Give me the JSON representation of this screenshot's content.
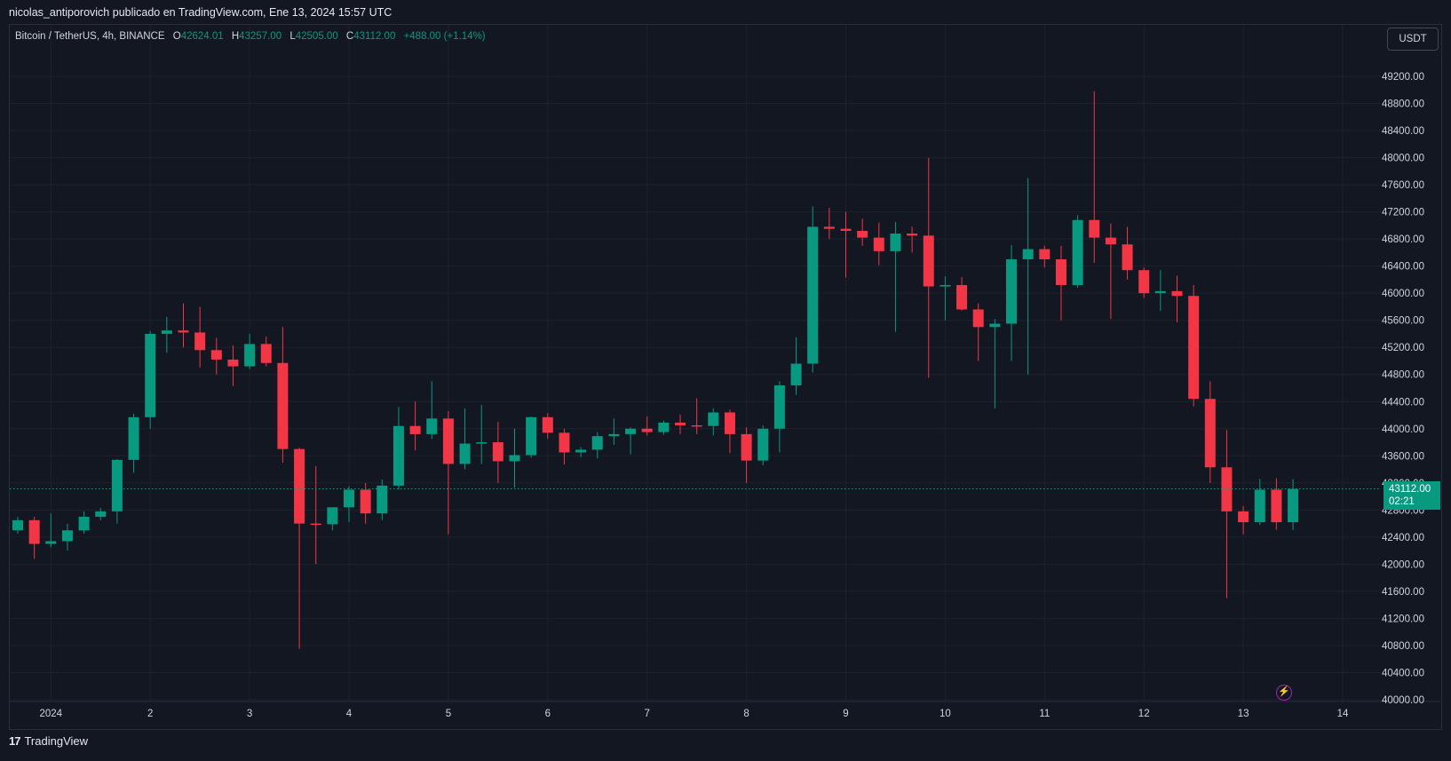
{
  "header": {
    "attribution": "nicolas_antiporovich publicado en TradingView.com, Ene 13, 2024 15:57 UTC"
  },
  "legend": {
    "symbol": "Bitcoin / TetherUS, 4h, BINANCE",
    "open_key": "O",
    "open": "42624.01",
    "high_key": "H",
    "high": "43257.00",
    "low_key": "L",
    "low": "42505.00",
    "close_key": "C",
    "close": "43112.00",
    "change": "+488.00 (+1.14%)"
  },
  "currency": "USDT",
  "last_price": {
    "price": "43112.00",
    "countdown": "02:21"
  },
  "footer": {
    "logo": "17",
    "brand": "TradingView"
  },
  "colors": {
    "up": "#089981",
    "down": "#f23645",
    "background": "#131722",
    "grid": "#1e222d",
    "text": "#d1d4dc"
  },
  "icons": {
    "alert": "lightning-icon",
    "logo": "tradingview-logo-icon"
  },
  "chart_data": {
    "type": "candlestick",
    "interval": "4h",
    "ylim": [
      39850,
      49650
    ],
    "y_ticks": [
      40000,
      40400,
      40800,
      41200,
      41600,
      42000,
      42400,
      42800,
      43200,
      43600,
      44000,
      44400,
      44800,
      45200,
      45600,
      46000,
      46400,
      46800,
      47200,
      47600,
      48000,
      48400,
      48800,
      49200
    ],
    "y_tick_labels": [
      "40000.00",
      "40400.00",
      "40800.00",
      "41200.00",
      "41600.00",
      "42000.00",
      "42400.00",
      "42800.00",
      "43200.00",
      "43600.00",
      "44000.00",
      "44400.00",
      "44800.00",
      "45200.00",
      "45600.00",
      "46000.00",
      "46400.00",
      "46800.00",
      "47200.00",
      "47600.00",
      "48000.00",
      "48400.00",
      "48800.00",
      "49200.00"
    ],
    "x_labels": [
      "2024",
      "2",
      "3",
      "4",
      "5",
      "6",
      "7",
      "8",
      "9",
      "10",
      "11",
      "12",
      "13",
      "14"
    ],
    "x_label_candle_index": [
      2,
      8,
      14,
      20,
      26,
      32,
      38,
      44,
      50,
      56,
      62,
      68,
      74,
      80
    ],
    "last_price_line": 43112,
    "candles": [
      {
        "o": 42500,
        "h": 42700,
        "l": 42450,
        "c": 42650
      },
      {
        "o": 42650,
        "h": 42700,
        "l": 42080,
        "c": 42300
      },
      {
        "o": 42300,
        "h": 42750,
        "l": 42250,
        "c": 42340
      },
      {
        "o": 42340,
        "h": 42600,
        "l": 42200,
        "c": 42500
      },
      {
        "o": 42500,
        "h": 42780,
        "l": 42450,
        "c": 42700
      },
      {
        "o": 42700,
        "h": 42830,
        "l": 42650,
        "c": 42780
      },
      {
        "o": 42780,
        "h": 43550,
        "l": 42600,
        "c": 43540
      },
      {
        "o": 43540,
        "h": 44220,
        "l": 43350,
        "c": 44170
      },
      {
        "o": 44170,
        "h": 45440,
        "l": 44000,
        "c": 45400
      },
      {
        "o": 45400,
        "h": 45650,
        "l": 45120,
        "c": 45450
      },
      {
        "o": 45450,
        "h": 45850,
        "l": 45200,
        "c": 45420
      },
      {
        "o": 45420,
        "h": 45800,
        "l": 44900,
        "c": 45160
      },
      {
        "o": 45160,
        "h": 45340,
        "l": 44800,
        "c": 45020
      },
      {
        "o": 45020,
        "h": 45230,
        "l": 44630,
        "c": 44920
      },
      {
        "o": 44920,
        "h": 45400,
        "l": 44880,
        "c": 45250
      },
      {
        "o": 45250,
        "h": 45360,
        "l": 44920,
        "c": 44970
      },
      {
        "o": 44970,
        "h": 45500,
        "l": 43500,
        "c": 43700
      },
      {
        "o": 43700,
        "h": 43720,
        "l": 40750,
        "c": 42600
      },
      {
        "o": 42600,
        "h": 43450,
        "l": 42000,
        "c": 42590
      },
      {
        "o": 42590,
        "h": 42840,
        "l": 42500,
        "c": 42840
      },
      {
        "o": 42840,
        "h": 43150,
        "l": 42620,
        "c": 43100
      },
      {
        "o": 43100,
        "h": 43200,
        "l": 42600,
        "c": 42750
      },
      {
        "o": 42750,
        "h": 43250,
        "l": 42650,
        "c": 43160
      },
      {
        "o": 43160,
        "h": 44320,
        "l": 43100,
        "c": 44040
      },
      {
        "o": 44040,
        "h": 44400,
        "l": 43680,
        "c": 43920
      },
      {
        "o": 43920,
        "h": 44700,
        "l": 43850,
        "c": 44150
      },
      {
        "o": 44150,
        "h": 44260,
        "l": 42440,
        "c": 43480
      },
      {
        "o": 43480,
        "h": 44300,
        "l": 43400,
        "c": 43780
      },
      {
        "o": 43780,
        "h": 44350,
        "l": 43480,
        "c": 43800
      },
      {
        "o": 43800,
        "h": 44100,
        "l": 43200,
        "c": 43520
      },
      {
        "o": 43520,
        "h": 44000,
        "l": 43130,
        "c": 43610
      },
      {
        "o": 43610,
        "h": 44180,
        "l": 43570,
        "c": 44170
      },
      {
        "o": 44170,
        "h": 44230,
        "l": 43850,
        "c": 43940
      },
      {
        "o": 43940,
        "h": 44000,
        "l": 43470,
        "c": 43650
      },
      {
        "o": 43650,
        "h": 43730,
        "l": 43580,
        "c": 43690
      },
      {
        "o": 43690,
        "h": 43950,
        "l": 43560,
        "c": 43890
      },
      {
        "o": 43890,
        "h": 44150,
        "l": 43760,
        "c": 43920
      },
      {
        "o": 43920,
        "h": 44020,
        "l": 43620,
        "c": 44000
      },
      {
        "o": 44000,
        "h": 44180,
        "l": 43900,
        "c": 43950
      },
      {
        "o": 43950,
        "h": 44120,
        "l": 43910,
        "c": 44090
      },
      {
        "o": 44090,
        "h": 44210,
        "l": 43920,
        "c": 44050
      },
      {
        "o": 44050,
        "h": 44450,
        "l": 43920,
        "c": 44040
      },
      {
        "o": 44040,
        "h": 44300,
        "l": 43900,
        "c": 44240
      },
      {
        "o": 44240,
        "h": 44280,
        "l": 43640,
        "c": 43920
      },
      {
        "o": 43920,
        "h": 44020,
        "l": 43200,
        "c": 43530
      },
      {
        "o": 43530,
        "h": 44050,
        "l": 43460,
        "c": 44000
      },
      {
        "o": 44000,
        "h": 44700,
        "l": 43650,
        "c": 44640
      },
      {
        "o": 44640,
        "h": 45350,
        "l": 44500,
        "c": 44960
      },
      {
        "o": 44960,
        "h": 47280,
        "l": 44830,
        "c": 46980
      },
      {
        "o": 46980,
        "h": 47260,
        "l": 46800,
        "c": 46950
      },
      {
        "o": 46950,
        "h": 47200,
        "l": 46230,
        "c": 46920
      },
      {
        "o": 46920,
        "h": 47100,
        "l": 46700,
        "c": 46820
      },
      {
        "o": 46820,
        "h": 47040,
        "l": 46410,
        "c": 46620
      },
      {
        "o": 46620,
        "h": 47050,
        "l": 45430,
        "c": 46880
      },
      {
        "o": 46880,
        "h": 46980,
        "l": 46600,
        "c": 46850
      },
      {
        "o": 46850,
        "h": 48000,
        "l": 44750,
        "c": 46100
      },
      {
        "o": 46100,
        "h": 46250,
        "l": 45600,
        "c": 46120
      },
      {
        "o": 46120,
        "h": 46240,
        "l": 45740,
        "c": 45760
      },
      {
        "o": 45760,
        "h": 45850,
        "l": 45000,
        "c": 45500
      },
      {
        "o": 45500,
        "h": 45620,
        "l": 44300,
        "c": 45550
      },
      {
        "o": 45550,
        "h": 46710,
        "l": 45000,
        "c": 46500
      },
      {
        "o": 46500,
        "h": 47700,
        "l": 44800,
        "c": 46650
      },
      {
        "o": 46650,
        "h": 46700,
        "l": 46380,
        "c": 46500
      },
      {
        "o": 46500,
        "h": 46700,
        "l": 45600,
        "c": 46120
      },
      {
        "o": 46120,
        "h": 47150,
        "l": 46080,
        "c": 47080
      },
      {
        "o": 47080,
        "h": 48980,
        "l": 46450,
        "c": 46820
      },
      {
        "o": 46820,
        "h": 47030,
        "l": 45620,
        "c": 46720
      },
      {
        "o": 46720,
        "h": 46980,
        "l": 46200,
        "c": 46340
      },
      {
        "o": 46340,
        "h": 46380,
        "l": 45930,
        "c": 46000
      },
      {
        "o": 46000,
        "h": 46340,
        "l": 45740,
        "c": 46030
      },
      {
        "o": 46030,
        "h": 46260,
        "l": 45570,
        "c": 45960
      },
      {
        "o": 45960,
        "h": 46120,
        "l": 44330,
        "c": 44440
      },
      {
        "o": 44440,
        "h": 44700,
        "l": 43200,
        "c": 43430
      },
      {
        "o": 43430,
        "h": 43980,
        "l": 41500,
        "c": 42780
      },
      {
        "o": 42780,
        "h": 42860,
        "l": 42440,
        "c": 42620
      },
      {
        "o": 42620,
        "h": 43260,
        "l": 42580,
        "c": 43100
      },
      {
        "o": 43100,
        "h": 43270,
        "l": 42510,
        "c": 42620
      },
      {
        "o": 42620,
        "h": 43257,
        "l": 42505,
        "c": 43112
      }
    ]
  }
}
